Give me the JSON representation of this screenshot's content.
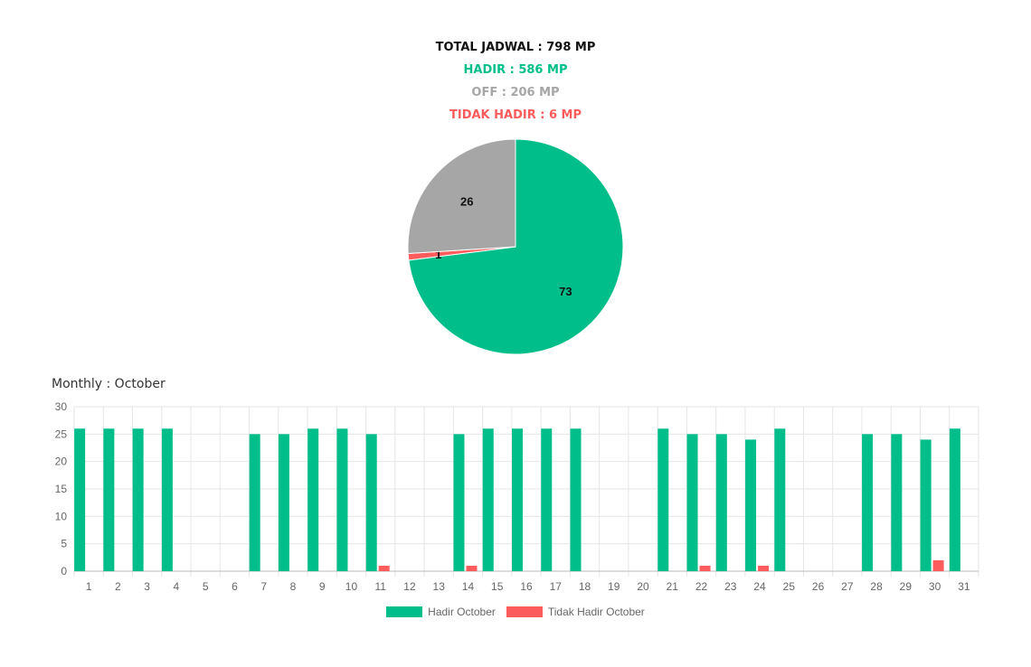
{
  "summary": {
    "total": "TOTAL JADWAL : 798 MP",
    "hadir": "HADIR : 586 MP",
    "off": "OFF : 206 MP",
    "tidak_hadir": "TIDAK HADIR : 6 MP"
  },
  "colors": {
    "total": "#111111",
    "hadir": "#00be8a",
    "off": "#a6a6a6",
    "tidak_hadir": "#fd5c5c"
  },
  "monthly_title": "Monthly : October",
  "chart_data": [
    {
      "type": "pie",
      "slices": [
        {
          "label": "73",
          "value": 73,
          "color": "#00be8a"
        },
        {
          "label": "1",
          "value": 1,
          "color": "#fd5c5c"
        },
        {
          "label": "26",
          "value": 26,
          "color": "#a6a6a6"
        }
      ]
    },
    {
      "type": "bar",
      "title": "Monthly : October",
      "categories": [
        "1",
        "2",
        "3",
        "4",
        "5",
        "6",
        "7",
        "8",
        "9",
        "10",
        "11",
        "12",
        "13",
        "14",
        "15",
        "16",
        "17",
        "18",
        "19",
        "20",
        "21",
        "22",
        "23",
        "24",
        "25",
        "26",
        "27",
        "28",
        "29",
        "30",
        "31"
      ],
      "series": [
        {
          "name": "Hadir October",
          "color": "#00be8a",
          "values": [
            26,
            26,
            26,
            26,
            0,
            0,
            25,
            25,
            26,
            26,
            25,
            0,
            0,
            25,
            26,
            26,
            26,
            26,
            0,
            0,
            26,
            25,
            25,
            24,
            26,
            0,
            0,
            25,
            25,
            24,
            26
          ]
        },
        {
          "name": "Tidak Hadir October",
          "color": "#fd5c5c",
          "values": [
            0,
            0,
            0,
            0,
            0,
            0,
            0,
            0,
            0,
            0,
            1,
            0,
            0,
            1,
            0,
            0,
            0,
            0,
            0,
            0,
            0,
            1,
            0,
            1,
            0,
            0,
            0,
            0,
            0,
            2,
            0
          ]
        }
      ],
      "ylim": [
        0,
        30
      ],
      "yticks": [
        0,
        5,
        10,
        15,
        20,
        25,
        30
      ],
      "grid": true,
      "legend": "bottom"
    }
  ]
}
